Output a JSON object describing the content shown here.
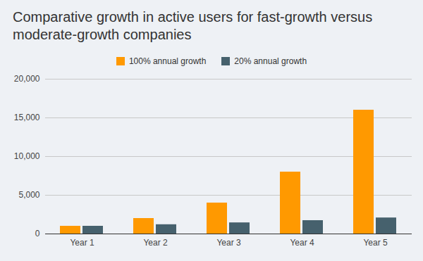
{
  "chart_data": {
    "type": "bar",
    "title": "Comparative growth in active users for fast-growth versus moderate-growth companies",
    "categories": [
      "Year 1",
      "Year 2",
      "Year 3",
      "Year 4",
      "Year 5"
    ],
    "series": [
      {
        "name": "100% annual growth",
        "color": "#ff9900",
        "values": [
          1000,
          2000,
          4000,
          8000,
          16000
        ]
      },
      {
        "name": "20% annual growth",
        "color": "#46616d",
        "values": [
          1000,
          1200,
          1440,
          1728,
          2074
        ]
      }
    ],
    "ylim": [
      0,
      20000
    ],
    "yticks": [
      0,
      {
        "value": 5000,
        "label": "5,000"
      },
      {
        "value": 10000,
        "label": "10,000"
      },
      {
        "value": 15000,
        "label": "15,000"
      },
      {
        "value": 20000,
        "label": "20,000"
      }
    ],
    "grid": true,
    "legend": "top"
  }
}
